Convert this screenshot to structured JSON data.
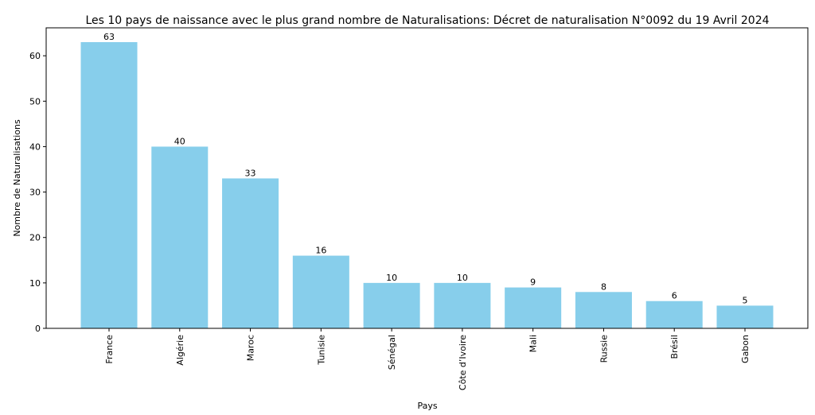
{
  "chart_data": {
    "type": "bar",
    "title": "Les 10 pays de naissance avec le plus grand nombre de Naturalisations: Décret de naturalisation N°0092 du 19 Avril 2024",
    "x_label": "Pays",
    "y_label": "Nombre de Naturalisations",
    "categories": [
      "France",
      "Algérie",
      "Maroc",
      "Tunisie",
      "Sénégal",
      "Côte d’Ivoire",
      "Mali",
      "Russie",
      "Brésil",
      "Gabon"
    ],
    "values": [
      63,
      40,
      33,
      16,
      10,
      10,
      9,
      8,
      6,
      5
    ],
    "color": "#87ceeb",
    "ylim": [
      0,
      66.15
    ],
    "yticks": [
      0,
      10,
      20,
      30,
      40,
      50,
      60
    ],
    "grid": false
  }
}
